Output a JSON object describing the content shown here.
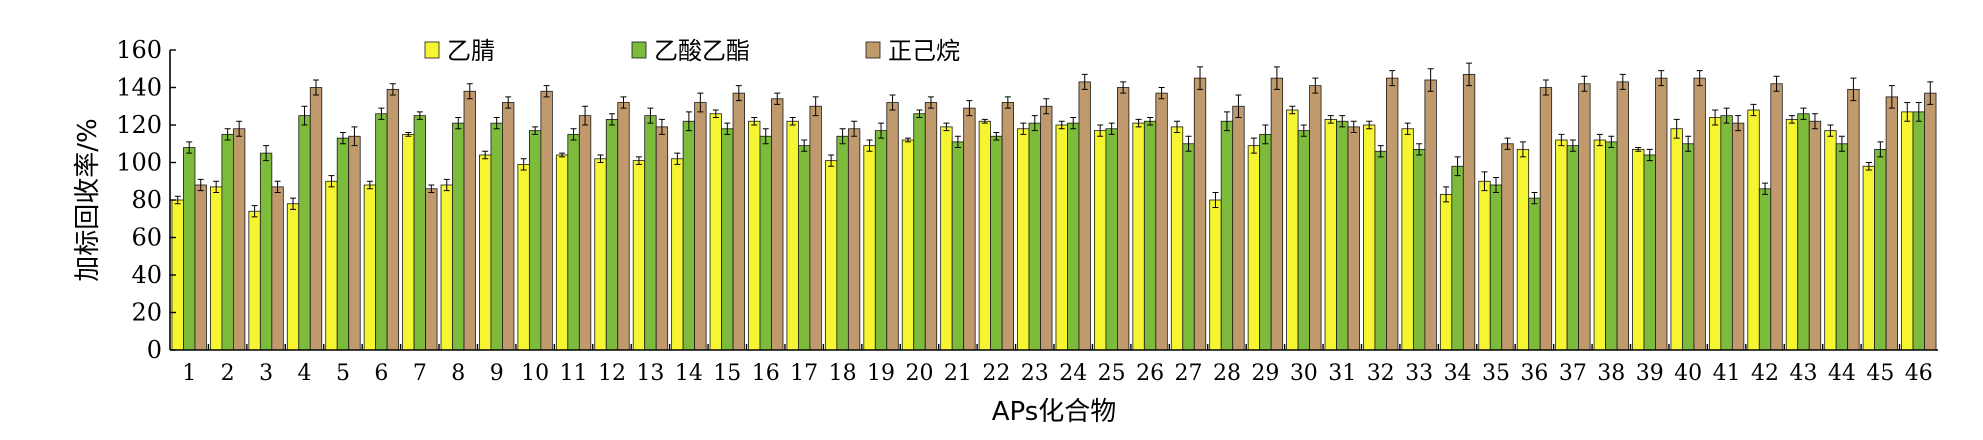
{
  "chart_data": {
    "type": "bar",
    "title": "",
    "xlabel": "APs化合物",
    "ylabel": "加标回收率/%",
    "ylim": [
      0,
      160
    ],
    "yticks": [
      0,
      20,
      40,
      60,
      80,
      100,
      120,
      140,
      160
    ],
    "grid": false,
    "legend_position": "top-left",
    "error_bars": true,
    "categories": [
      "1",
      "2",
      "3",
      "4",
      "5",
      "6",
      "7",
      "8",
      "9",
      "10",
      "11",
      "12",
      "13",
      "14",
      "15",
      "16",
      "17",
      "18",
      "19",
      "20",
      "21",
      "22",
      "23",
      "24",
      "25",
      "26",
      "27",
      "28",
      "29",
      "30",
      "31",
      "32",
      "33",
      "34",
      "35",
      "36",
      "37",
      "38",
      "39",
      "40",
      "41",
      "42",
      "43",
      "44",
      "45",
      "46"
    ],
    "series": [
      {
        "name": "乙腈",
        "color": "#f5f532",
        "values": [
          80,
          87,
          74,
          78,
          90,
          88,
          115,
          88,
          104,
          99,
          104,
          102,
          101,
          102,
          126,
          122,
          122,
          101,
          109,
          112,
          119,
          122,
          118,
          120,
          117,
          121,
          119,
          80,
          109,
          128,
          123,
          120,
          118,
          83,
          90,
          107,
          112,
          112,
          107,
          118,
          124,
          128,
          123,
          117,
          98,
          127
        ],
        "errors": [
          2,
          3,
          3,
          3,
          3,
          2,
          1,
          3,
          2,
          3,
          1,
          2,
          2,
          3,
          2,
          2,
          2,
          3,
          3,
          1,
          2,
          1,
          3,
          2,
          3,
          2,
          3,
          4,
          4,
          2,
          2,
          2,
          3,
          4,
          5,
          4,
          3,
          3,
          1,
          5,
          4,
          3,
          2,
          3,
          2,
          5
        ]
      },
      {
        "name": "乙酸乙酯",
        "color": "#7dbb3c",
        "values": [
          108,
          115,
          105,
          125,
          113,
          126,
          125,
          121,
          121,
          117,
          115,
          123,
          125,
          122,
          118,
          114,
          109,
          114,
          117,
          126,
          111,
          114,
          121,
          121,
          118,
          122,
          110,
          122,
          115,
          117,
          122,
          106,
          107,
          98,
          88,
          81,
          109,
          111,
          104,
          110,
          125,
          86,
          126,
          110,
          107,
          127
        ],
        "errors": [
          3,
          3,
          4,
          5,
          3,
          3,
          2,
          3,
          3,
          2,
          3,
          3,
          4,
          5,
          3,
          4,
          3,
          4,
          4,
          2,
          3,
          2,
          4,
          3,
          3,
          2,
          4,
          5,
          5,
          3,
          3,
          3,
          3,
          5,
          4,
          3,
          3,
          3,
          3,
          4,
          4,
          3,
          3,
          4,
          4,
          5
        ]
      },
      {
        "name": "正己烷",
        "color": "#c09a6c",
        "values": [
          88,
          118,
          87,
          140,
          114,
          139,
          86,
          138,
          132,
          138,
          125,
          132,
          119,
          132,
          137,
          134,
          130,
          118,
          132,
          132,
          129,
          132,
          130,
          143,
          140,
          137,
          145,
          130,
          145,
          141,
          119,
          145,
          144,
          147,
          110,
          140,
          142,
          143,
          145,
          145,
          121,
          142,
          122,
          139,
          135,
          137
        ],
        "errors": [
          3,
          4,
          3,
          4,
          5,
          3,
          2,
          4,
          3,
          3,
          5,
          3,
          4,
          5,
          4,
          3,
          5,
          4,
          4,
          3,
          4,
          3,
          4,
          4,
          3,
          3,
          6,
          6,
          6,
          4,
          3,
          4,
          6,
          6,
          3,
          4,
          4,
          4,
          4,
          4,
          4,
          4,
          4,
          6,
          6,
          6
        ]
      }
    ]
  }
}
